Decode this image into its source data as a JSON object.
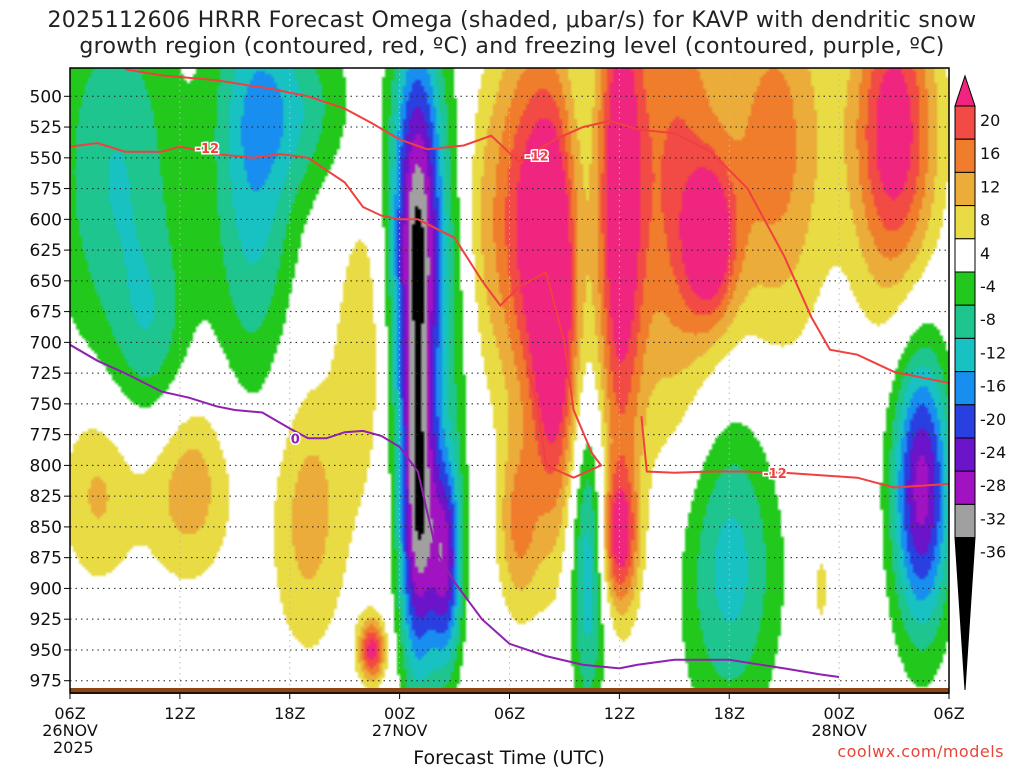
{
  "title_line1": "2025112606 HRRR Forecast Omega (shaded, μbar/s) for KAVP with dendritic snow",
  "title_line2": "growth region (contoured, red, ºC) and freezing level (contoured, purple, ºC)",
  "credit": "coolwx.com/models",
  "chart_data": {
    "type": "heatmap",
    "title": "2025112606 HRRR Forecast Omega (shaded, μbar/s) for KAVP with dendritic snow growth region (contoured, red, ºC) and freezing level (contoured, purple, ºC)",
    "xlabel": "Forecast Time (UTC)",
    "ylabel": "",
    "xlim": [
      0,
      48
    ],
    "ylim": [
      985,
      477
    ],
    "x_ticks": [
      {
        "hour": 0,
        "labels": [
          "06Z",
          "26NOV",
          "2025"
        ]
      },
      {
        "hour": 6,
        "labels": [
          "12Z"
        ]
      },
      {
        "hour": 12,
        "labels": [
          "18Z"
        ]
      },
      {
        "hour": 18,
        "labels": [
          "00Z",
          "27NOV"
        ]
      },
      {
        "hour": 24,
        "labels": [
          "06Z"
        ]
      },
      {
        "hour": 30,
        "labels": [
          "12Z"
        ]
      },
      {
        "hour": 36,
        "labels": [
          "18Z"
        ]
      },
      {
        "hour": 42,
        "labels": [
          "00Z",
          "28NOV"
        ]
      },
      {
        "hour": 48,
        "labels": [
          "06Z"
        ]
      }
    ],
    "y_ticks": [
      500,
      525,
      550,
      575,
      600,
      625,
      650,
      675,
      700,
      725,
      750,
      775,
      800,
      825,
      850,
      875,
      900,
      925,
      950,
      975
    ],
    "colorbar": {
      "labels": [
        "20",
        "16",
        "12",
        "8",
        "4",
        "-4",
        "-8",
        "-12",
        "-16",
        "-20",
        "-24",
        "-28",
        "-32",
        "-36"
      ],
      "levels": [
        {
          "lo": 20,
          "hi": 24,
          "color": "#f0257f"
        },
        {
          "lo": 16,
          "hi": 20,
          "color": "#f24a44"
        },
        {
          "lo": 12,
          "hi": 16,
          "color": "#ef7d2b"
        },
        {
          "lo": 8,
          "hi": 12,
          "color": "#ebac3a"
        },
        {
          "lo": 4,
          "hi": 8,
          "color": "#e8db44"
        },
        {
          "lo": -4,
          "hi": 4,
          "color": "#ffffff"
        },
        {
          "lo": -8,
          "hi": -4,
          "color": "#22c91c"
        },
        {
          "lo": -12,
          "hi": -8,
          "color": "#1fc58e"
        },
        {
          "lo": -16,
          "hi": -12,
          "color": "#18c2c2"
        },
        {
          "lo": -20,
          "hi": -16,
          "color": "#178ef0"
        },
        {
          "lo": -24,
          "hi": -20,
          "color": "#2a3fe0"
        },
        {
          "lo": -28,
          "hi": -24,
          "color": "#6b14c9"
        },
        {
          "lo": -32,
          "hi": -28,
          "color": "#a012c2"
        },
        {
          "lo": -36,
          "hi": -32,
          "color": "#a0a0a0"
        },
        {
          "lo": -40,
          "hi": -36,
          "color": "#000000"
        }
      ]
    },
    "omega_centers": [
      {
        "hour": 2.5,
        "pressure": 560,
        "value": -12,
        "sx": 2.5,
        "sy": 110
      },
      {
        "hour": 4.5,
        "pressure": 700,
        "value": -8,
        "sx": 1.5,
        "sy": 60
      },
      {
        "hour": 10,
        "pressure": 560,
        "value": -14,
        "sx": 1.6,
        "sy": 130
      },
      {
        "hour": 12.5,
        "pressure": 510,
        "value": -9,
        "sx": 2.2,
        "sy": 50
      },
      {
        "hour": 1.5,
        "pressure": 820,
        "value": 9,
        "sx": 1.5,
        "sy": 55
      },
      {
        "hour": 6.5,
        "pressure": 815,
        "value": 11,
        "sx": 1.8,
        "sy": 55
      },
      {
        "hour": 13,
        "pressure": 840,
        "value": 10,
        "sx": 1.5,
        "sy": 80
      },
      {
        "hour": 16,
        "pressure": 700,
        "value": 7,
        "sx": 1.1,
        "sy": 90
      },
      {
        "hour": 16.5,
        "pressure": 950,
        "value": 22,
        "sx": 0.5,
        "sy": 18
      },
      {
        "hour": 19,
        "pressure": 620,
        "value": -37,
        "sx": 1.0,
        "sy": 120
      },
      {
        "hour": 19,
        "pressure": 850,
        "value": -30,
        "sx": 0.7,
        "sy": 90
      },
      {
        "hour": 20.5,
        "pressure": 880,
        "value": -26,
        "sx": 0.6,
        "sy": 60
      },
      {
        "hour": 21.2,
        "pressure": 650,
        "value": -7,
        "sx": 0.7,
        "sy": 140
      },
      {
        "hour": 22,
        "pressure": 600,
        "value": 6,
        "sx": 1.2,
        "sy": 90
      },
      {
        "hour": 25,
        "pressure": 600,
        "value": 20,
        "sx": 1.4,
        "sy": 110
      },
      {
        "hour": 26.5,
        "pressure": 680,
        "value": 24,
        "sx": 0.9,
        "sy": 120
      },
      {
        "hour": 24.5,
        "pressure": 850,
        "value": 12,
        "sx": 0.8,
        "sy": 50
      },
      {
        "hour": 28.3,
        "pressure": 880,
        "value": -16,
        "sx": 0.7,
        "sy": 90
      },
      {
        "hour": 30,
        "pressure": 590,
        "value": 24,
        "sx": 0.9,
        "sy": 160
      },
      {
        "hour": 30,
        "pressure": 860,
        "value": 19,
        "sx": 0.7,
        "sy": 40
      },
      {
        "hour": 33,
        "pressure": 560,
        "value": 16,
        "sx": 1.8,
        "sy": 150
      },
      {
        "hour": 35,
        "pressure": 620,
        "value": 20,
        "sx": 1.0,
        "sy": 45
      },
      {
        "hour": 36,
        "pressure": 880,
        "value": -14,
        "sx": 1.9,
        "sy": 90
      },
      {
        "hour": 38.5,
        "pressure": 540,
        "value": 14,
        "sx": 2.0,
        "sy": 110
      },
      {
        "hour": 41,
        "pressure": 900,
        "value": 5,
        "sx": 0.5,
        "sy": 40
      },
      {
        "hour": 45,
        "pressure": 530,
        "value": 24,
        "sx": 1.6,
        "sy": 90
      },
      {
        "hour": 46.5,
        "pressure": 820,
        "value": -30,
        "sx": 1.1,
        "sy": 80
      }
    ],
    "contours": [
      {
        "name": "dendritic-minus12-upper",
        "label": "-12",
        "color": "#f04040",
        "points": [
          [
            3,
            478
          ],
          [
            5,
            483
          ],
          [
            8,
            487
          ],
          [
            11,
            494
          ],
          [
            13,
            500
          ],
          [
            15,
            510
          ],
          [
            16.5,
            522
          ],
          [
            18,
            535
          ],
          [
            19.5,
            543
          ],
          [
            21.5,
            540
          ],
          [
            23,
            532
          ],
          [
            24.5,
            553
          ],
          [
            26.5,
            535
          ],
          [
            28,
            525
          ],
          [
            29.5,
            520
          ],
          [
            31,
            527
          ],
          [
            33,
            530
          ],
          [
            35,
            545
          ],
          [
            37,
            575
          ],
          [
            39,
            630
          ],
          [
            40.5,
            680
          ],
          [
            41.5,
            706
          ],
          [
            43,
            710
          ],
          [
            45,
            724
          ],
          [
            47,
            730
          ],
          [
            48,
            733
          ]
        ],
        "label_at": [
          25.5,
          548
        ]
      },
      {
        "name": "dendritic-minus12-lower",
        "label": "-12",
        "color": "#f04040",
        "points": [
          [
            0,
            541
          ],
          [
            1.5,
            538
          ],
          [
            3,
            545
          ],
          [
            5,
            545
          ],
          [
            6,
            541
          ],
          [
            8,
            547
          ],
          [
            10,
            550
          ],
          [
            11.5,
            547
          ],
          [
            13,
            550
          ],
          [
            15,
            570
          ],
          [
            16,
            590
          ],
          [
            17,
            597
          ],
          [
            18,
            600
          ],
          [
            19,
            600
          ],
          [
            21,
            615
          ],
          [
            22.5,
            650
          ],
          [
            23.5,
            670
          ],
          [
            24.5,
            655
          ],
          [
            26,
            643
          ],
          [
            27,
            700
          ],
          [
            27.5,
            755
          ],
          [
            28.5,
            790
          ],
          [
            29,
            800
          ],
          [
            27.5,
            810
          ],
          [
            26,
            800
          ],
          [
            25.5,
            750
          ],
          [
            25,
            720
          ]
        ],
        "label_at": [
          7.5,
          542
        ]
      },
      {
        "name": "dendritic-minus12-bottom",
        "label": "-12",
        "color": "#f04040",
        "points": [
          [
            31.2,
            760
          ],
          [
            31.5,
            805
          ],
          [
            33,
            806
          ],
          [
            35,
            805
          ],
          [
            37,
            805
          ],
          [
            39,
            806
          ],
          [
            41,
            808
          ],
          [
            43,
            810
          ],
          [
            45,
            818
          ],
          [
            47,
            816
          ],
          [
            48,
            815
          ]
        ],
        "label_at": [
          38.5,
          806
        ]
      },
      {
        "name": "freezing-level-0",
        "label": "0",
        "color": "#9020b0",
        "points": [
          [
            0,
            702
          ],
          [
            1.5,
            715
          ],
          [
            3,
            725
          ],
          [
            5,
            740
          ],
          [
            6.5,
            745
          ],
          [
            8,
            752
          ],
          [
            9,
            755
          ],
          [
            10.5,
            757
          ],
          [
            12,
            770
          ],
          [
            13,
            778
          ],
          [
            14,
            778
          ],
          [
            15,
            773
          ],
          [
            16,
            772
          ],
          [
            17,
            776
          ],
          [
            18,
            785
          ],
          [
            19,
            805
          ],
          [
            20,
            870
          ],
          [
            21,
            895
          ],
          [
            22.5,
            925
          ],
          [
            24,
            945
          ],
          [
            26,
            955
          ],
          [
            28,
            962
          ],
          [
            30,
            965
          ],
          [
            31,
            962
          ],
          [
            33,
            958
          ],
          [
            36,
            958
          ],
          [
            39,
            965
          ],
          [
            41,
            970
          ],
          [
            42,
            972
          ]
        ],
        "label_at": [
          12.3,
          778
        ]
      }
    ]
  }
}
